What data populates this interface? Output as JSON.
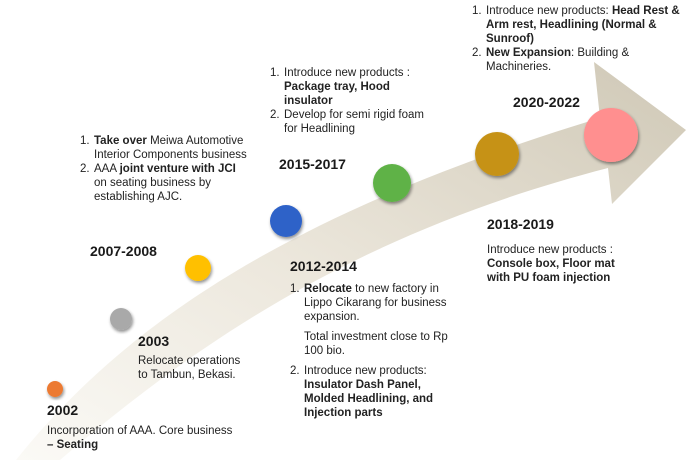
{
  "colors": {
    "arrow_light": "#f7f4ee",
    "arrow_dark": "#cfc8b6",
    "m2002": "#ec7a30",
    "m2003": "#a9a9a9",
    "m2007": "#ffc000",
    "m2012": "#2f62c8",
    "m2015": "#5fb246",
    "m2018": "#c69214",
    "m2020": "#ff8f8f"
  },
  "milestones": {
    "m2002": {
      "year": "2002",
      "text": "Incorporation of AAA. Core business",
      "text_bold": "– Seating"
    },
    "m2003": {
      "year": "2003",
      "line1": "Relocate operations",
      "line2": "to Tambun, Bekasi."
    },
    "m2007": {
      "year": "2007-2008",
      "i1_bold": "Take over",
      "i1_rest": "Meiwa Automotive Interior Components business",
      "i2_pre": "AAA",
      "i2_bold": "joint venture with JCI",
      "i2_rest": "on seating business by establishing AJC."
    },
    "m2012": {
      "year": "2012-2014",
      "i1_bold": "Relocate",
      "i1_rest": "to new factory in Lippo Cikarang for business expansion.",
      "note": "Total investment close to Rp 100 bio.",
      "i2_label": "Introduce new products:",
      "i2_bold": "Insulator Dash Panel, Molded Headlining, and Injection parts"
    },
    "m2015": {
      "year": "2015-2017",
      "i1_label": "Introduce new products :",
      "i1_bold": "Package tray, Hood insulator",
      "i2_text": "Develop for semi rigid foam for Headlining"
    },
    "m2018": {
      "year": "2018-2019",
      "label": "Introduce new products :",
      "bold": "Console box, Floor mat with PU foam injection"
    },
    "m2020": {
      "year": "2020-2022",
      "i1_label": "Introduce new products:",
      "i1_bold": "Head Rest & Arm rest, Headlining (Normal & Sunroof)",
      "i2_bold": "New Expansion",
      "i2_rest": ": Building & Machineries."
    }
  }
}
